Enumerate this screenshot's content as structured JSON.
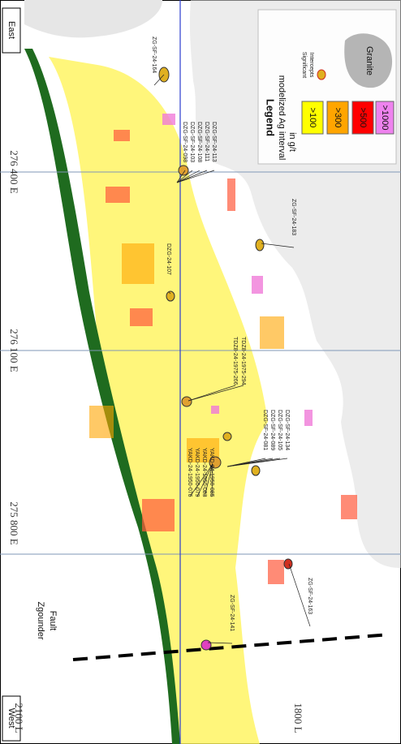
{
  "orientation": {
    "east": "East",
    "west": "West"
  },
  "grid_labels": [
    "276 400 E",
    "276 100 E",
    "275 800 E"
  ],
  "level_labels": [
    "2100 L",
    "1800 L"
  ],
  "fault": [
    "Zgounder",
    "Fault"
  ],
  "legend": {
    "title": "Legend",
    "subtitle": [
      "modelized Ag interval",
      "in g/t"
    ],
    "grades": [
      ">100",
      ">300",
      ">500",
      ">1000"
    ],
    "intercepts": [
      "Significant",
      "Intercepts"
    ],
    "granite": "Granite"
  },
  "drill_holes": [
    [
      "ZG-SF-24-164"
    ],
    [
      "DZG-SF-24-098",
      "DZG-SF-24-103",
      "DZG-SF-24-108",
      "DZG-SF-24-111",
      "DZG-SF-24-113"
    ],
    [
      "ZG-SF-24-183"
    ],
    [
      "DZG-24-107"
    ],
    [
      "TDZ8-24-1975-266",
      "TDZ8-24-1975-294"
    ],
    [
      "DZG-SF-24-081",
      "DZG-SF-24-089",
      "DZG-SF-24-105",
      "DZG-SF-24-134"
    ],
    [
      "YAKD-24-1950-076",
      "YAKD-24-1950-079",
      "YAKD-24-1950-083",
      "YAKD-24-1950-085"
    ],
    [
      "ZG-SF-24-163"
    ],
    [
      "ZG-SF-24-141"
    ]
  ]
}
